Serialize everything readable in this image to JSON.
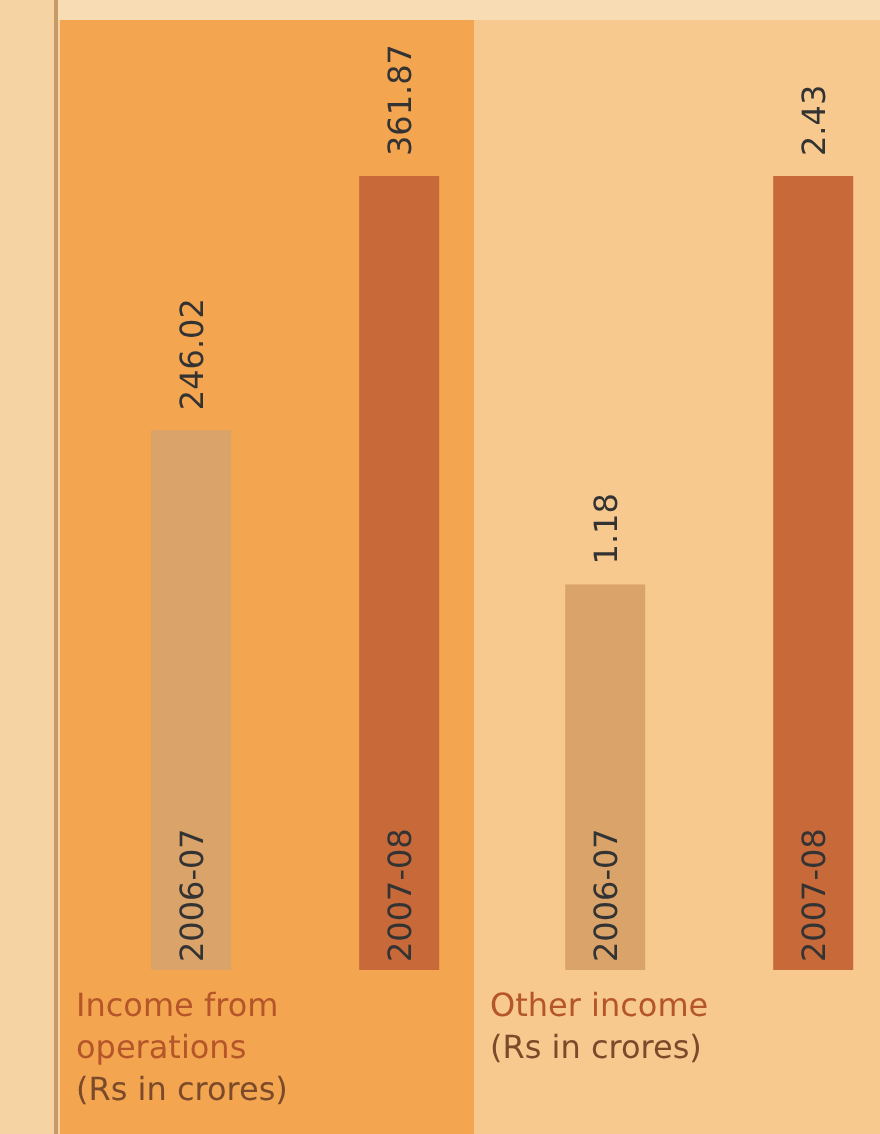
{
  "chart_data": [
    {
      "type": "bar",
      "title": "Income from operations",
      "subtitle": "(Rs in crores)",
      "categories": [
        "2006-07",
        "2007-08"
      ],
      "values": [
        246.02,
        361.87
      ],
      "colors": [
        "#d9a36a",
        "#c8693a"
      ],
      "data_labels": true
    },
    {
      "type": "bar",
      "title": "Other income",
      "subtitle": "(Rs in crores)",
      "categories": [
        "2006-07",
        "2007-08"
      ],
      "values": [
        1.18,
        2.43
      ],
      "colors": [
        "#d9a36a",
        "#c8693a"
      ],
      "data_labels": true
    }
  ]
}
